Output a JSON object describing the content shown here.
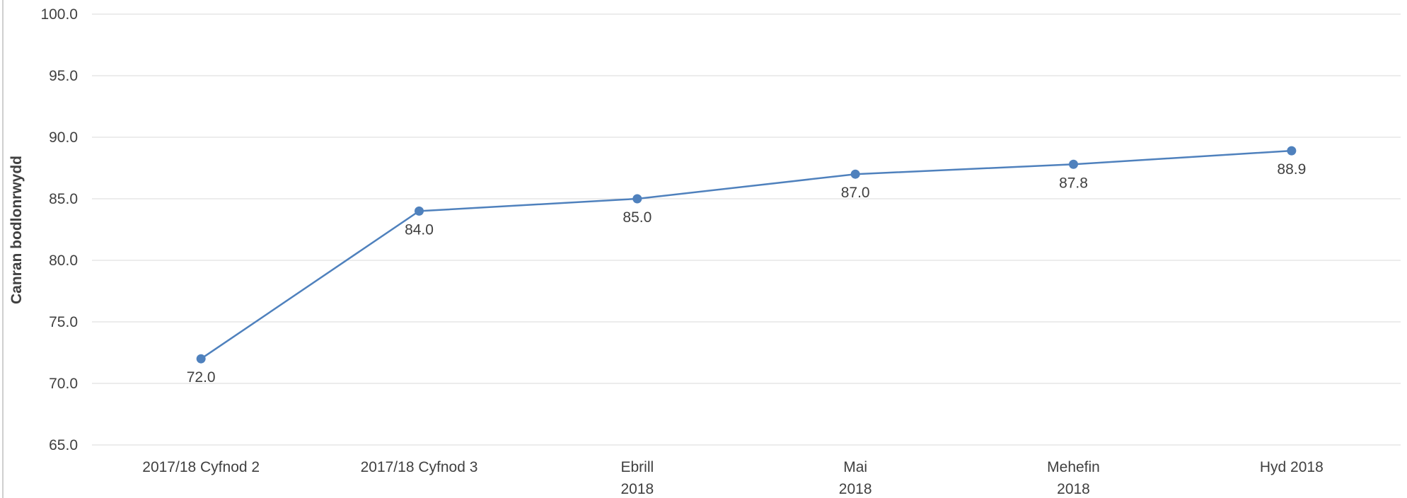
{
  "chart_data": {
    "type": "line",
    "title": "",
    "xlabel": "",
    "ylabel": "Canran bodlonrwydd",
    "categories": [
      [
        "2017/18 Cyfnod 2"
      ],
      [
        "2017/18 Cyfnod 3"
      ],
      [
        "Ebrill",
        "2018"
      ],
      [
        "Mai",
        "2018"
      ],
      [
        "Mehefin",
        "2018"
      ],
      [
        "Hyd 2018"
      ]
    ],
    "series": [
      {
        "values": [
          72.0,
          84.0,
          85.0,
          87.0,
          87.8,
          88.9
        ]
      }
    ],
    "ylim": [
      65,
      100
    ],
    "yticks": [
      65,
      70,
      75,
      80,
      85,
      90,
      95,
      100
    ],
    "grid": true,
    "legend": "none",
    "data_labels": true,
    "colors": {
      "series": "#4f81bd",
      "grid": "#d9d9d9",
      "text": "#404040"
    }
  }
}
